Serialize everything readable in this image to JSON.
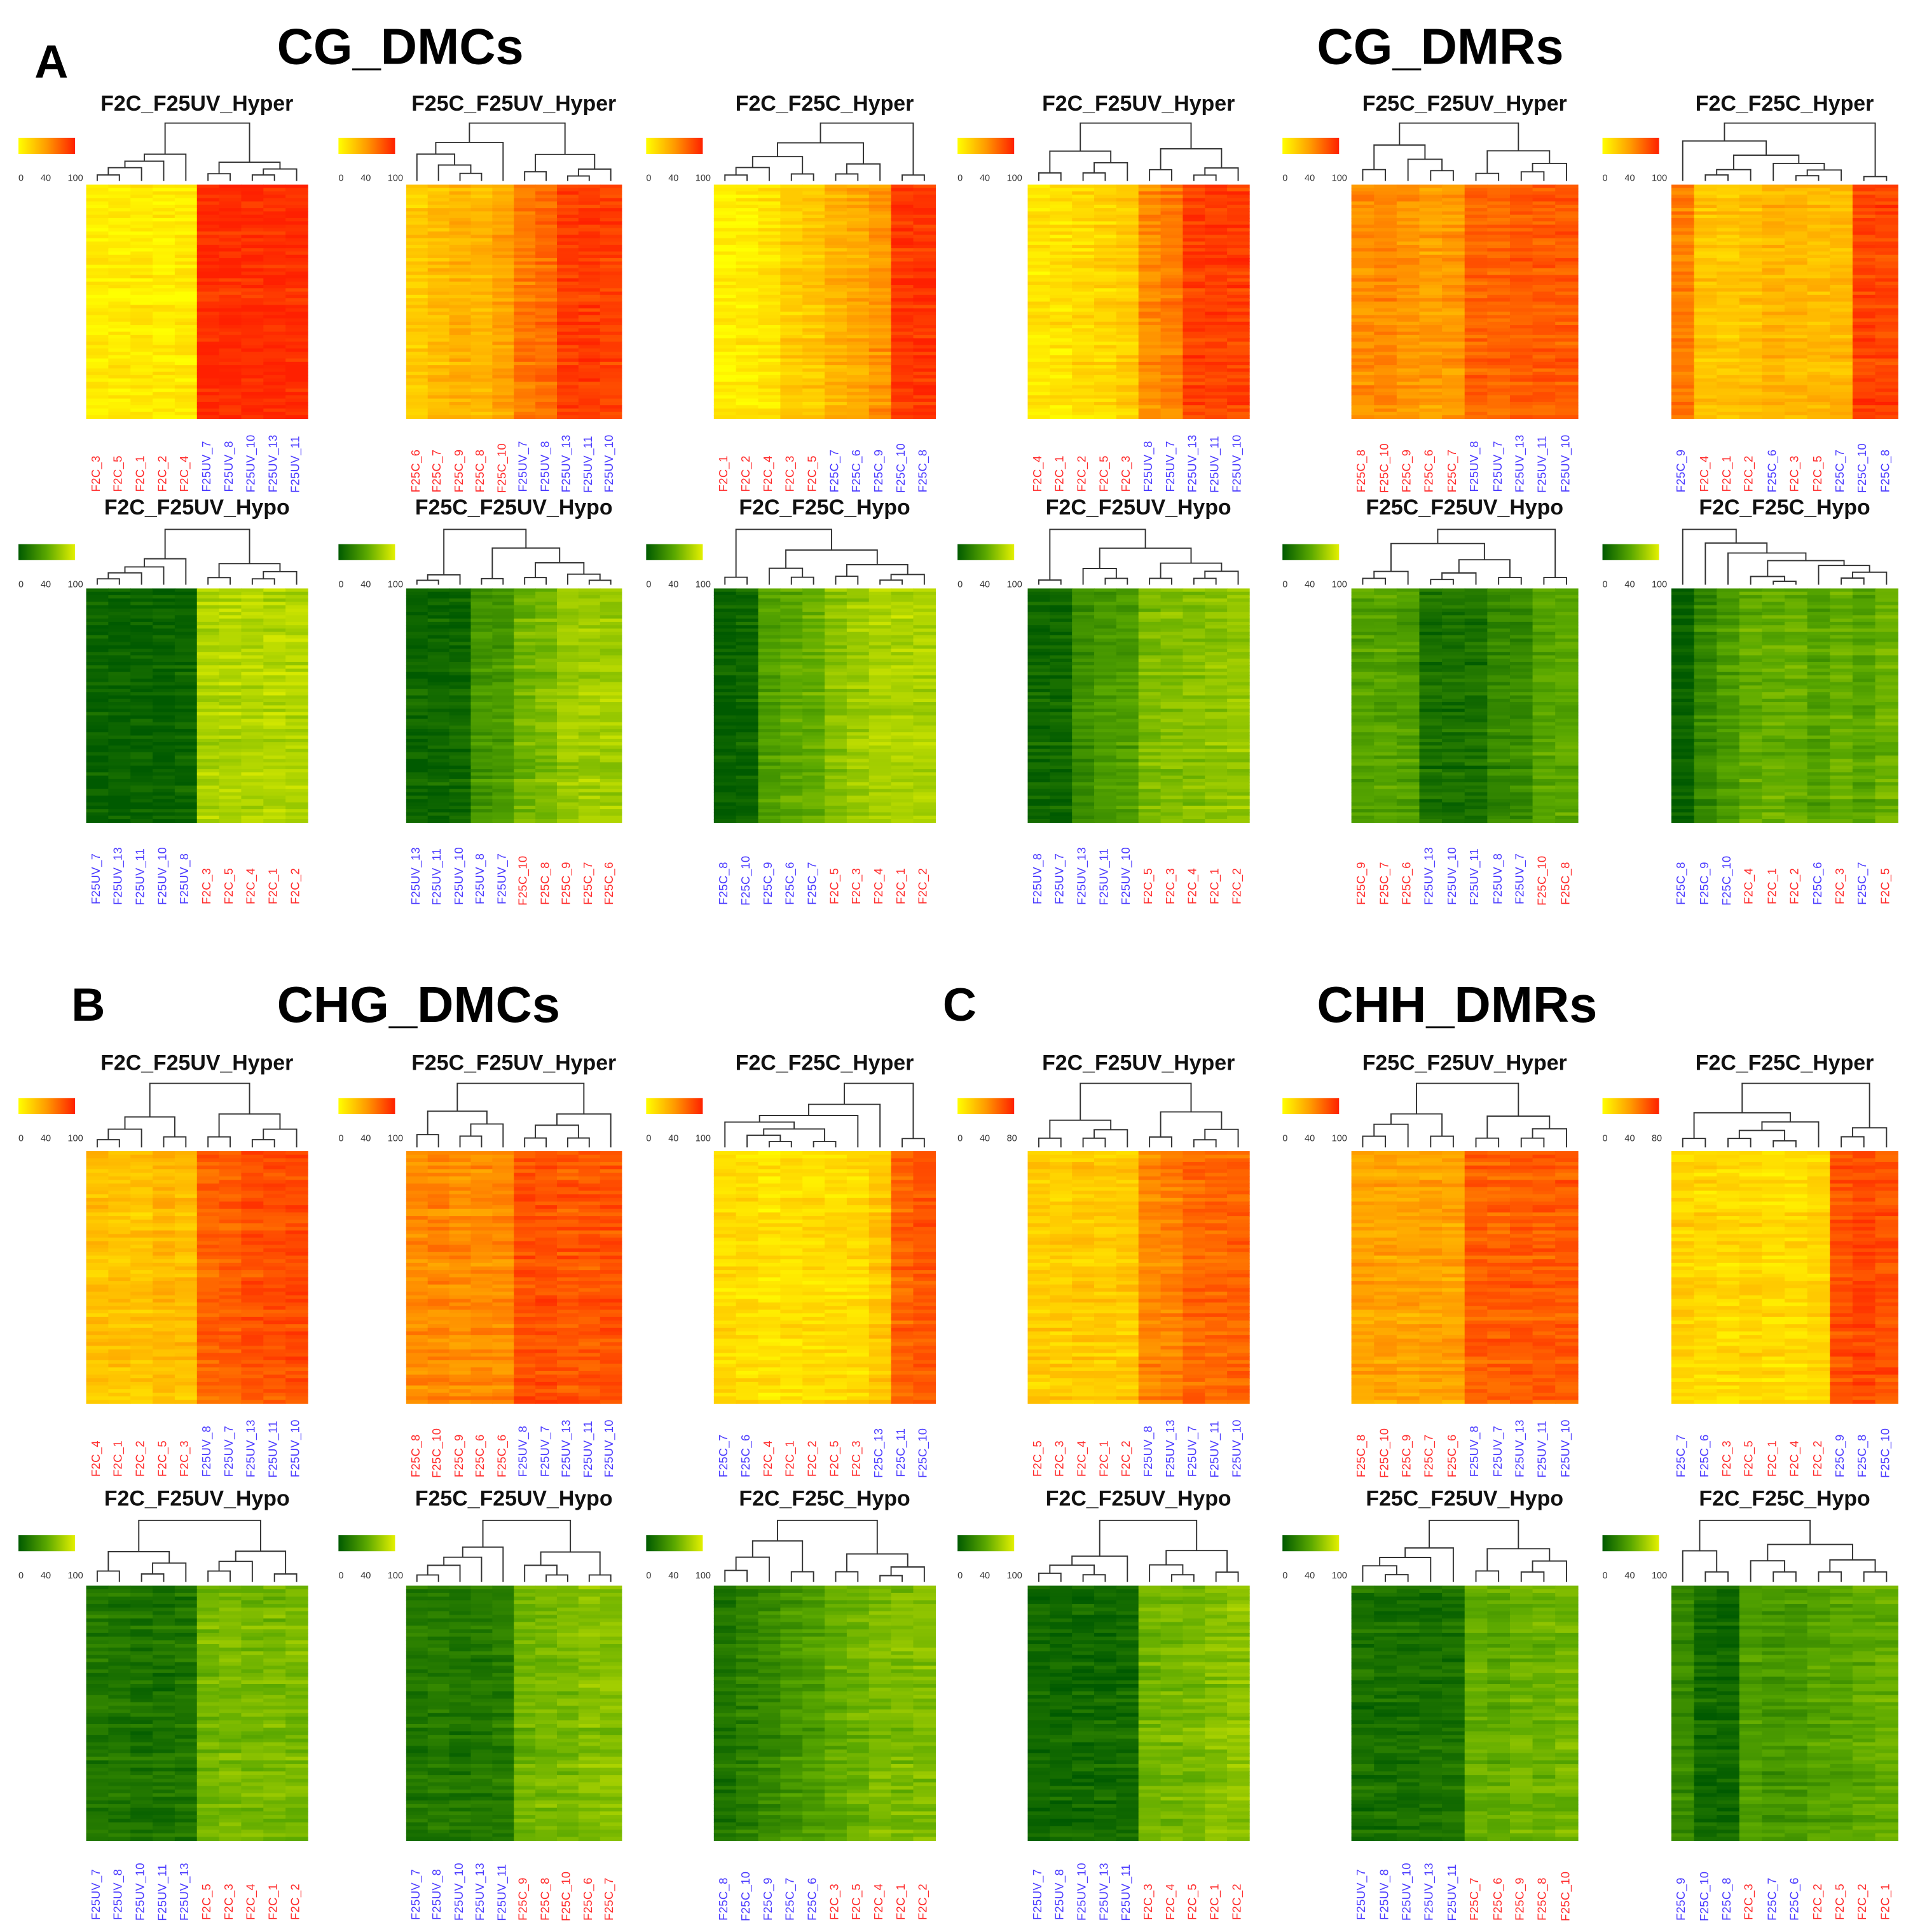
{
  "figure": {
    "panel_letters": [
      "A",
      "B",
      "C"
    ],
    "sections": [
      "CG_DMCs",
      "CG_DMRs",
      "CHG_DMCs",
      "CHH_DMRs"
    ],
    "group_colors": {
      "first": "#ff2a2a",
      "second": "#4a3aff"
    },
    "palettes": {
      "hyper": [
        "#ffff00",
        "#ff9a00",
        "#ff2000"
      ],
      "hypo": [
        "#005a00",
        "#5aa800",
        "#e4f000"
      ]
    }
  },
  "chart_data": [
    {
      "type": "heatmap",
      "section": "CG_DMCs",
      "title": "F2C_F25UV_Hyper",
      "palette": "hyper",
      "scale_ticks": [
        "0",
        "40",
        "100"
      ],
      "labels": [
        "F2C_3",
        "F2C_5",
        "F2C_1",
        "F2C_2",
        "F2C_4",
        "F25UV_7",
        "F25UV_8",
        "F25UV_10",
        "F25UV_13",
        "F25UV_11"
      ],
      "column_levels": [
        8,
        8,
        9,
        8,
        9,
        95,
        94,
        95,
        95,
        95
      ]
    },
    {
      "type": "heatmap",
      "section": "CG_DMCs",
      "title": "F25C_F25UV_Hyper",
      "palette": "hyper",
      "scale_ticks": [
        "0",
        "40",
        "100"
      ],
      "labels": [
        "F25C_6",
        "F25C_7",
        "F25C_9",
        "F25C_8",
        "F25C_10",
        "F25UV_7",
        "F25UV_8",
        "F25UV_13",
        "F25UV_11",
        "F25UV_10"
      ],
      "column_levels": [
        25,
        32,
        38,
        35,
        45,
        62,
        68,
        88,
        88,
        86
      ]
    },
    {
      "type": "heatmap",
      "section": "CG_DMCs",
      "title": "F2C_F25C_Hyper",
      "palette": "hyper",
      "scale_ticks": [
        "0",
        "40",
        "100"
      ],
      "labels": [
        "F2C_1",
        "F2C_2",
        "F2C_4",
        "F2C_3",
        "F2C_5",
        "F25C_7",
        "F25C_6",
        "F25C_9",
        "F25C_10",
        "F25C_8"
      ],
      "column_levels": [
        8,
        10,
        14,
        24,
        28,
        38,
        42,
        52,
        90,
        92
      ]
    },
    {
      "type": "heatmap",
      "section": "CG_DMRs",
      "title": "F2C_F25UV_Hyper",
      "palette": "hyper",
      "scale_ticks": [
        "0",
        "40",
        "100"
      ],
      "labels": [
        "F2C_4",
        "F2C_1",
        "F2C_2",
        "F2C_5",
        "F2C_3",
        "F25UV_8",
        "F25UV_7",
        "F25UV_13",
        "F25UV_11",
        "F25UV_10"
      ],
      "column_levels": [
        12,
        14,
        18,
        20,
        24,
        55,
        62,
        88,
        88,
        87
      ]
    },
    {
      "type": "heatmap",
      "section": "CG_DMRs",
      "title": "F25C_F25UV_Hyper",
      "palette": "hyper",
      "scale_ticks": [
        "0",
        "40",
        "100"
      ],
      "labels": [
        "F25C_8",
        "F25C_10",
        "F25C_9",
        "F25C_6",
        "F25C_7",
        "F25UV_8",
        "F25UV_7",
        "F25UV_13",
        "F25UV_11",
        "F25UV_10"
      ],
      "column_levels": [
        55,
        58,
        52,
        48,
        50,
        72,
        72,
        76,
        77,
        76
      ]
    },
    {
      "type": "heatmap",
      "section": "CG_DMRs",
      "title": "F2C_F25C_Hyper",
      "palette": "hyper",
      "scale_ticks": [
        "0",
        "40",
        "100"
      ],
      "labels": [
        "F25C_9",
        "F2C_4",
        "F2C_1",
        "F2C_2",
        "F25C_6",
        "F2C_3",
        "F2C_5",
        "F25C_7",
        "F25C_10",
        "F25C_8"
      ],
      "column_levels": [
        62,
        30,
        28,
        30,
        38,
        35,
        34,
        36,
        86,
        86
      ]
    },
    {
      "type": "heatmap",
      "section": "CG_DMCs",
      "title": "F2C_F25UV_Hypo",
      "palette": "hypo",
      "scale_ticks": [
        "0",
        "40",
        "100"
      ],
      "labels": [
        "F25UV_7",
        "F25UV_13",
        "F25UV_11",
        "F25UV_10",
        "F25UV_8",
        "F2C_3",
        "F2C_5",
        "F2C_4",
        "F2C_1",
        "F2C_2"
      ],
      "column_levels": [
        4,
        4,
        4,
        4,
        6,
        80,
        81,
        82,
        82,
        83
      ]
    },
    {
      "type": "heatmap",
      "section": "CG_DMCs",
      "title": "F25C_F25UV_Hypo",
      "palette": "hypo",
      "scale_ticks": [
        "0",
        "40",
        "100"
      ],
      "labels": [
        "F25UV_13",
        "F25UV_11",
        "F25UV_10",
        "F25UV_8",
        "F25UV_7",
        "F25C_10",
        "F25C_8",
        "F25C_9",
        "F25C_7",
        "F25C_6"
      ],
      "column_levels": [
        8,
        8,
        9,
        38,
        40,
        58,
        62,
        74,
        76,
        76
      ]
    },
    {
      "type": "heatmap",
      "section": "CG_DMCs",
      "title": "F2C_F25C_Hypo",
      "palette": "hypo",
      "scale_ticks": [
        "0",
        "40",
        "100"
      ],
      "labels": [
        "F25C_8",
        "F25C_10",
        "F25C_9",
        "F25C_6",
        "F25C_7",
        "F2C_5",
        "F2C_3",
        "F2C_4",
        "F2C_1",
        "F2C_2"
      ],
      "column_levels": [
        4,
        8,
        45,
        50,
        54,
        68,
        74,
        80,
        80,
        81
      ]
    },
    {
      "type": "heatmap",
      "section": "CG_DMRs",
      "title": "F2C_F25UV_Hypo",
      "palette": "hypo",
      "scale_ticks": [
        "0",
        "40",
        "100"
      ],
      "labels": [
        "F25UV_8",
        "F25UV_7",
        "F25UV_13",
        "F25UV_11",
        "F25UV_10",
        "F2C_5",
        "F2C_3",
        "F2C_4",
        "F2C_1",
        "F2C_2"
      ],
      "column_levels": [
        8,
        8,
        32,
        40,
        42,
        62,
        64,
        66,
        68,
        70
      ]
    },
    {
      "type": "heatmap",
      "section": "CG_DMRs",
      "title": "F25C_F25UV_Hypo",
      "palette": "hypo",
      "scale_ticks": [
        "0",
        "40",
        "100"
      ],
      "labels": [
        "F25C_9",
        "F25C_7",
        "F25C_6",
        "F25UV_13",
        "F25UV_10",
        "F25UV_11",
        "F25UV_8",
        "F25UV_7",
        "F25C_10",
        "F25C_8"
      ],
      "column_levels": [
        45,
        46,
        44,
        14,
        14,
        15,
        28,
        30,
        46,
        48
      ]
    },
    {
      "type": "heatmap",
      "section": "CG_DMRs",
      "title": "F2C_F25C_Hypo",
      "palette": "hypo",
      "scale_ticks": [
        "0",
        "40",
        "100"
      ],
      "labels": [
        "F25C_8",
        "F25C_9",
        "F25C_10",
        "F2C_4",
        "F2C_1",
        "F2C_2",
        "F25C_6",
        "F2C_3",
        "F25C_7",
        "F2C_5"
      ],
      "column_levels": [
        4,
        30,
        42,
        52,
        54,
        54,
        46,
        55,
        48,
        56
      ]
    },
    {
      "type": "heatmap",
      "section": "CHG_DMCs",
      "title": "F2C_F25UV_Hyper",
      "palette": "hyper",
      "scale_ticks": [
        "0",
        "40",
        "100"
      ],
      "labels": [
        "F2C_4",
        "F2C_1",
        "F2C_2",
        "F2C_5",
        "F2C_3",
        "F25UV_8",
        "F25UV_7",
        "F25UV_13",
        "F25UV_11",
        "F25UV_10"
      ],
      "column_levels": [
        30,
        30,
        28,
        34,
        32,
        72,
        74,
        80,
        80,
        82
      ]
    },
    {
      "type": "heatmap",
      "section": "CHG_DMCs",
      "title": "F25C_F25UV_Hyper",
      "palette": "hyper",
      "scale_ticks": [
        "0",
        "40",
        "100"
      ],
      "labels": [
        "F25C_8",
        "F25C_10",
        "F25C_9",
        "F25C_6",
        "F25C_6",
        "F25UV_8",
        "F25UV_7",
        "F25UV_13",
        "F25UV_11",
        "F25UV_10"
      ],
      "column_levels": [
        56,
        58,
        54,
        55,
        56,
        80,
        80,
        78,
        78,
        80
      ]
    },
    {
      "type": "heatmap",
      "section": "CHG_DMCs",
      "title": "F2C_F25C_Hyper",
      "palette": "hyper",
      "scale_ticks": [
        "0",
        "40",
        "100"
      ],
      "labels": [
        "F25C_7",
        "F25C_6",
        "F2C_4",
        "F2C_1",
        "F2C_2",
        "F2C_5",
        "F2C_3",
        "F25C_13",
        "F25C_11",
        "F25C_10"
      ],
      "column_levels": [
        18,
        16,
        14,
        15,
        16,
        17,
        18,
        28,
        72,
        78
      ]
    },
    {
      "type": "heatmap",
      "section": "CHH_DMRs",
      "title": "F2C_F25UV_Hyper",
      "palette": "hyper",
      "scale_ticks": [
        "0",
        "40",
        "80"
      ],
      "labels": [
        "F2C_5",
        "F2C_3",
        "F2C_4",
        "F2C_1",
        "F2C_2",
        "F25UV_8",
        "F25UV_13",
        "F25UV_7",
        "F25UV_11",
        "F25UV_10"
      ],
      "column_levels": [
        25,
        24,
        26,
        25,
        26,
        58,
        60,
        70,
        70,
        72
      ]
    },
    {
      "type": "heatmap",
      "section": "CHH_DMRs",
      "title": "F25C_F25UV_Hyper",
      "palette": "hyper",
      "scale_ticks": [
        "0",
        "40",
        "100"
      ],
      "labels": [
        "F25C_8",
        "F25C_10",
        "F25C_9",
        "F25C_7",
        "F25C_6",
        "F25UV_8",
        "F25UV_7",
        "F25UV_13",
        "F25UV_11",
        "F25UV_10"
      ],
      "column_levels": [
        45,
        46,
        44,
        46,
        45,
        74,
        74,
        76,
        76,
        76
      ]
    },
    {
      "type": "heatmap",
      "section": "CHH_DMRs",
      "title": "F2C_F25C_Hyper",
      "palette": "hyper",
      "scale_ticks": [
        "0",
        "40",
        "80"
      ],
      "labels": [
        "F25C_7",
        "F25C_6",
        "F2C_3",
        "F2C_5",
        "F2C_1",
        "F2C_4",
        "F2C_2",
        "F25C_9",
        "F25C_8",
        "F25C_10"
      ],
      "column_levels": [
        22,
        20,
        18,
        20,
        18,
        18,
        20,
        80,
        84,
        80
      ]
    },
    {
      "type": "heatmap",
      "section": "CHG_DMCs",
      "title": "F2C_F25UV_Hypo",
      "palette": "hypo",
      "scale_ticks": [
        "0",
        "40",
        "100"
      ],
      "labels": [
        "F25UV_7",
        "F25UV_8",
        "F25UV_10",
        "F25UV_11",
        "F25UV_13",
        "F2C_5",
        "F2C_3",
        "F2C_4",
        "F2C_1",
        "F2C_2"
      ],
      "column_levels": [
        20,
        18,
        16,
        16,
        18,
        60,
        62,
        60,
        62,
        62
      ]
    },
    {
      "type": "heatmap",
      "section": "CHG_DMCs",
      "title": "F25C_F25UV_Hypo",
      "palette": "hypo",
      "scale_ticks": [
        "0",
        "40",
        "100"
      ],
      "labels": [
        "F25UV_7",
        "F25UV_8",
        "F25UV_10",
        "F25UV_13",
        "F25UV_11",
        "F25C_9",
        "F25C_8",
        "F25C_10",
        "F25C_6",
        "F25C_7"
      ],
      "column_levels": [
        20,
        20,
        18,
        20,
        22,
        58,
        60,
        60,
        66,
        66
      ]
    },
    {
      "type": "heatmap",
      "section": "CHG_DMCs",
      "title": "F2C_F25C_Hypo",
      "palette": "hypo",
      "scale_ticks": [
        "0",
        "40",
        "100"
      ],
      "labels": [
        "F25C_8",
        "F25C_10",
        "F25C_9",
        "F25C_7",
        "F25C_6",
        "F2C_3",
        "F2C_5",
        "F2C_4",
        "F2C_1",
        "F2C_2"
      ],
      "column_levels": [
        18,
        24,
        30,
        38,
        42,
        52,
        56,
        62,
        62,
        64
      ]
    },
    {
      "type": "heatmap",
      "section": "CHH_DMRs",
      "title": "F2C_F25UV_Hypo",
      "palette": "hypo",
      "scale_ticks": [
        "0",
        "40",
        "100"
      ],
      "labels": [
        "F25UV_7",
        "F25UV_8",
        "F25UV_10",
        "F25UV_13",
        "F25UV_11",
        "F2C_3",
        "F2C_4",
        "F2C_5",
        "F2C_1",
        "F2C_2"
      ],
      "column_levels": [
        10,
        9,
        10,
        10,
        11,
        58,
        60,
        60,
        66,
        68
      ]
    },
    {
      "type": "heatmap",
      "section": "CHH_DMRs",
      "title": "F25C_F25UV_Hypo",
      "palette": "hypo",
      "scale_ticks": [
        "0",
        "40",
        "100"
      ],
      "labels": [
        "F25UV_7",
        "F25UV_8",
        "F25UV_10",
        "F25UV_13",
        "F25UV_11",
        "F25C_7",
        "F25C_6",
        "F25C_9",
        "F25C_8",
        "F25C_10"
      ],
      "column_levels": [
        15,
        14,
        14,
        15,
        16,
        55,
        52,
        58,
        56,
        60
      ]
    },
    {
      "type": "heatmap",
      "section": "CHH_DMRs",
      "title": "F2C_F25C_Hypo",
      "palette": "hypo",
      "scale_ticks": [
        "0",
        "40",
        "100"
      ],
      "labels": [
        "F25C_9",
        "F25C_10",
        "F25C_8",
        "F2C_3",
        "F25C_7",
        "F25C_6",
        "F2C_2",
        "F2C_5",
        "F2C_2",
        "F2C_1"
      ],
      "column_levels": [
        30,
        10,
        8,
        42,
        38,
        40,
        46,
        48,
        50,
        52
      ]
    }
  ]
}
